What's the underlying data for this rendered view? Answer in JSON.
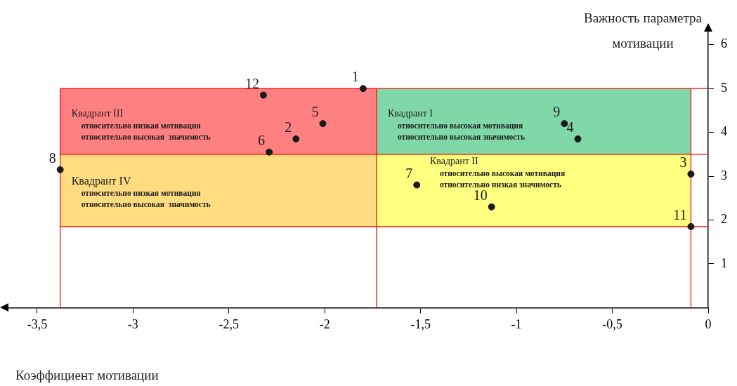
{
  "chart_data": {
    "type": "scatter",
    "xlabel": "Коэффициент мотивации",
    "ylabel": "Важность параметра мотивации",
    "series": [
      {
        "name": "1",
        "color": "#1a1a1a",
        "x": [
          -1.8
        ],
        "values": [
          5.0
        ]
      },
      {
        "name": "2",
        "color": "#1a1a1a",
        "x": [
          -2.15
        ],
        "values": [
          3.85
        ]
      },
      {
        "name": "3",
        "color": "#1a1a1a",
        "x": [
          -0.09
        ],
        "values": [
          3.05
        ]
      },
      {
        "name": "4",
        "color": "#1a1a1a",
        "x": [
          -0.68
        ],
        "values": [
          3.85
        ]
      },
      {
        "name": "5",
        "color": "#1a1a1a",
        "x": [
          -2.01
        ],
        "values": [
          4.2
        ]
      },
      {
        "name": "6",
        "color": "#1a1a1a",
        "x": [
          -2.29
        ],
        "values": [
          3.55
        ]
      },
      {
        "name": "7",
        "color": "#1a1a1a",
        "x": [
          -1.52
        ],
        "values": [
          2.8
        ]
      },
      {
        "name": "8",
        "color": "#1a1a1a",
        "x": [
          -3.38
        ],
        "values": [
          3.15
        ]
      },
      {
        "name": "9",
        "color": "#1a1a1a",
        "x": [
          -0.75
        ],
        "values": [
          4.2
        ]
      },
      {
        "name": "10",
        "color": "#1a1a1a",
        "x": [
          -1.13
        ],
        "values": [
          2.3
        ]
      },
      {
        "name": "11",
        "color": "#1a1a1a",
        "x": [
          -0.09
        ],
        "values": [
          1.85
        ]
      },
      {
        "name": "12",
        "color": "#1a1a1a",
        "x": [
          -2.32
        ],
        "values": [
          4.85
        ]
      }
    ],
    "xlim": [
      -3.65,
      0
    ],
    "xticks": [
      {
        "value": -3.5,
        "label": "-3,5"
      },
      -3,
      {
        "value": -2.5,
        "label": "-2,5"
      },
      -2,
      {
        "value": -1.5,
        "label": "-1,5"
      },
      -1,
      {
        "value": -0.5,
        "label": "-0,5"
      },
      0
    ],
    "ylim": [
      0,
      6.3
    ],
    "yticks": [
      1,
      2,
      3,
      4,
      5,
      6
    ],
    "ref_lines": [
      {
        "axis": "x",
        "value": -3.38,
        "color": "#ff0000"
      },
      {
        "axis": "x",
        "value": -1.73,
        "color": "#ff0000"
      },
      {
        "axis": "x",
        "value": -0.09,
        "color": "#ff0000"
      },
      {
        "axis": "y",
        "value": 5,
        "color": "#ff0000"
      },
      {
        "axis": "y",
        "value": 3.5,
        "color": "#ff0000"
      },
      {
        "axis": "y",
        "value": 1.85,
        "color": "#ff0000"
      }
    ],
    "annotations": [
      "Квадрант I\nотносительно высокая мотивация\nотносительно высокая значимость",
      "Квадрант II\nотносительно высокая мотивация\nотносительно низкая значимость",
      "Квадрант III\nотносительно низкая мотивация\nотносительно высокая  значимость",
      "Квадрант IV\nотносительно низкая мотивация\nотносительно высокая  значимость"
    ],
    "grid": false,
    "legend": false,
    "marker": "circle"
  }
}
